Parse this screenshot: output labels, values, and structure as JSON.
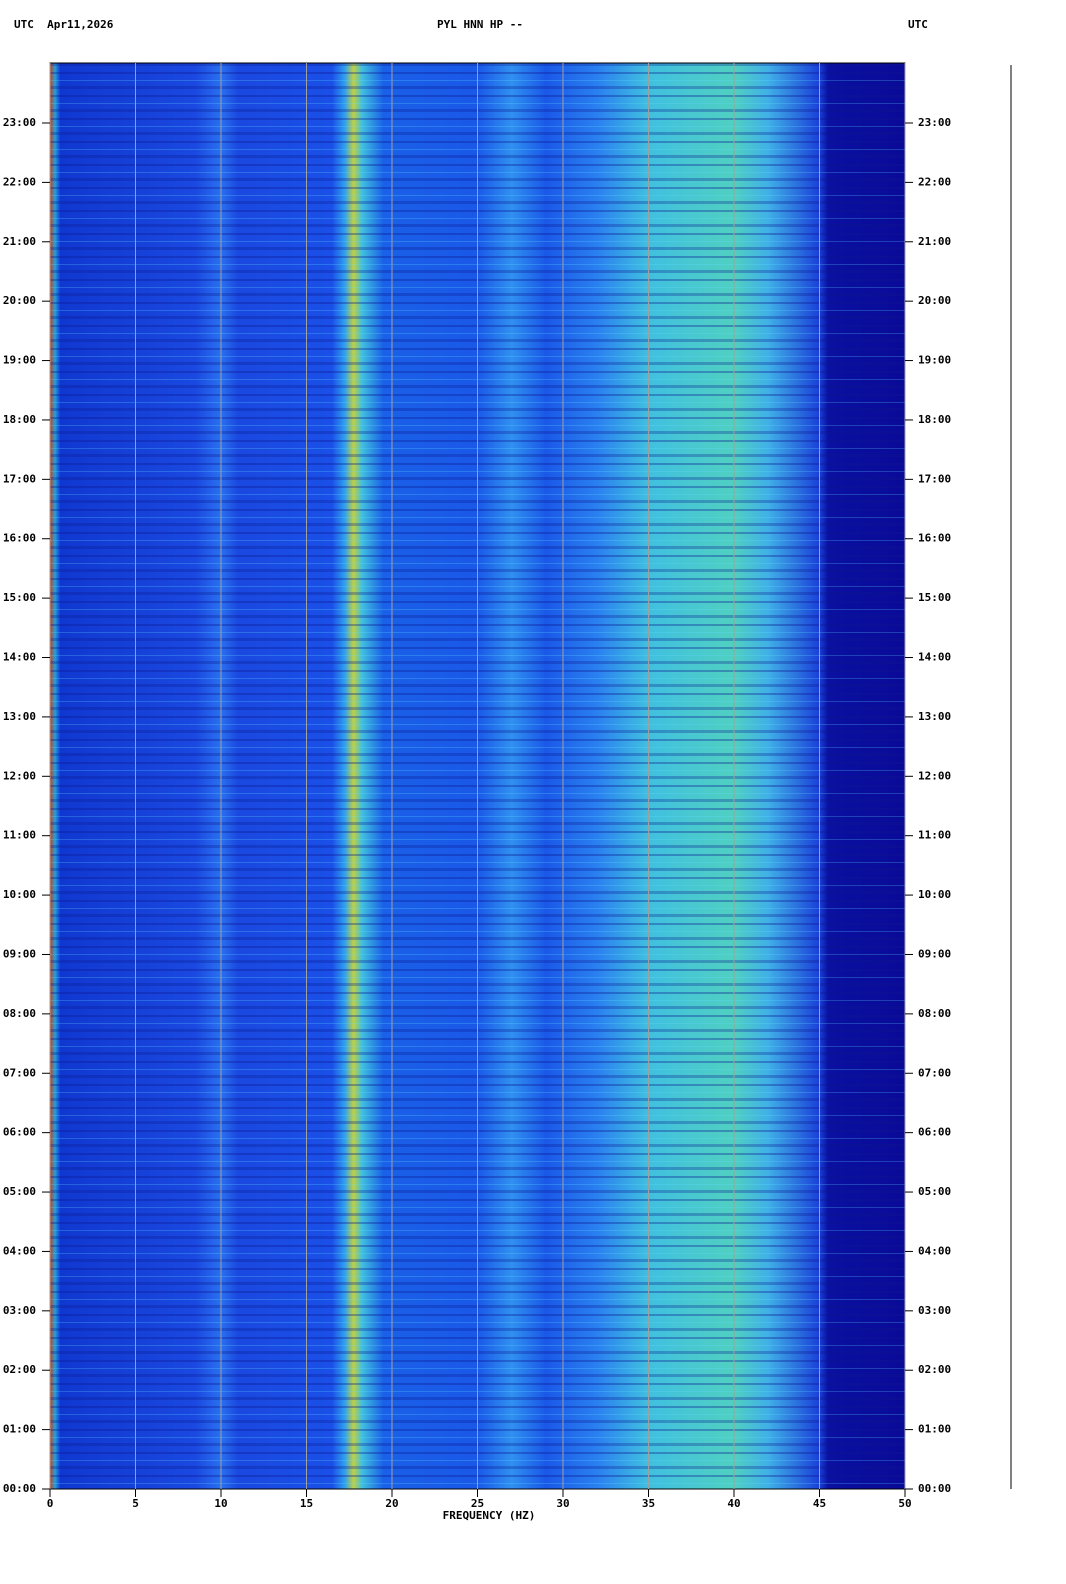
{
  "chart_data": {
    "type": "spectrogram",
    "title": "PYL HNN HP --",
    "header_left": "UTC  Apr11,2026",
    "header_right": "UTC",
    "x_label": "FREQUENCY (HZ)",
    "xlim": [
      0,
      50
    ],
    "xticks": [
      0,
      5,
      10,
      15,
      20,
      25,
      30,
      35,
      40,
      45,
      50
    ],
    "ylim": [
      0,
      24
    ],
    "yticks": [
      {
        "value": 0,
        "label": "00:00"
      },
      {
        "value": 1,
        "label": "01:00"
      },
      {
        "value": 2,
        "label": "02:00"
      },
      {
        "value": 3,
        "label": "03:00"
      },
      {
        "value": 4,
        "label": "04:00"
      },
      {
        "value": 5,
        "label": "05:00"
      },
      {
        "value": 6,
        "label": "06:00"
      },
      {
        "value": 7,
        "label": "07:00"
      },
      {
        "value": 8,
        "label": "08:00"
      },
      {
        "value": 9,
        "label": "09:00"
      },
      {
        "value": 10,
        "label": "10:00"
      },
      {
        "value": 11,
        "label": "11:00"
      },
      {
        "value": 12,
        "label": "12:00"
      },
      {
        "value": 13,
        "label": "13:00"
      },
      {
        "value": 14,
        "label": "14:00"
      },
      {
        "value": 15,
        "label": "15:00"
      },
      {
        "value": 16,
        "label": "16:00"
      },
      {
        "value": 17,
        "label": "17:00"
      },
      {
        "value": 18,
        "label": "18:00"
      },
      {
        "value": 19,
        "label": "19:00"
      },
      {
        "value": 20,
        "label": "20:00"
      },
      {
        "value": 21,
        "label": "21:00"
      },
      {
        "value": 22,
        "label": "22:00"
      },
      {
        "value": 23,
        "label": "23:00"
      }
    ],
    "grid": true
  }
}
